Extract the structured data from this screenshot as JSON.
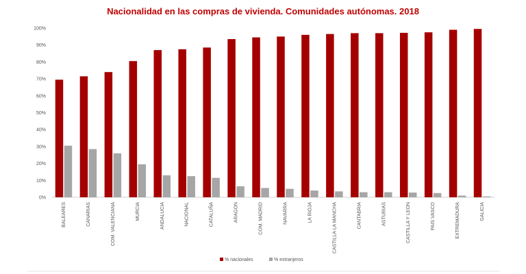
{
  "chart_data": {
    "type": "bar",
    "title": "Nacionalidad en las compras de vivienda. Comunidades autónomas. 2018",
    "xlabel": "",
    "ylabel": "",
    "ylim": [
      0,
      100
    ],
    "yticks": [
      "0%",
      "10%",
      "20%",
      "30%",
      "40%",
      "50%",
      "60%",
      "70%",
      "80%",
      "90%",
      "100%"
    ],
    "grid": false,
    "legend_position": "bottom",
    "categories": [
      "BALEARES",
      "CANARIAS",
      "COM. VALENCIANA",
      "MURCIA",
      "ANDALUCIA",
      "NACIONAL",
      "CATALUÑA",
      "ARAGON",
      "COM. MADRID",
      "NAVARRA",
      "LA RIOJA",
      "CASTILLA LA MANCHA",
      "CANTABRIA",
      "ASTURIAS",
      "CASTILLA Y LEON",
      "PAIS VASCO",
      "EXTREMADURA",
      "GALICIA"
    ],
    "series": [
      {
        "name": "% nacionales",
        "color": "#A50000",
        "values": [
          69.5,
          71.5,
          74,
          80.5,
          87,
          87.5,
          88.5,
          93.5,
          94.5,
          95,
          96,
          96.5,
          97,
          97,
          97.2,
          97.5,
          99,
          99.5
        ]
      },
      {
        "name": "% extranjeros",
        "color": "#A6A6A6",
        "values": [
          30.5,
          28.5,
          26,
          19.5,
          13,
          12.5,
          11.5,
          6.5,
          5.5,
          5,
          4,
          3.5,
          3,
          3,
          2.8,
          2.5,
          1,
          0.5
        ]
      }
    ],
    "title_color": "#C00000"
  }
}
